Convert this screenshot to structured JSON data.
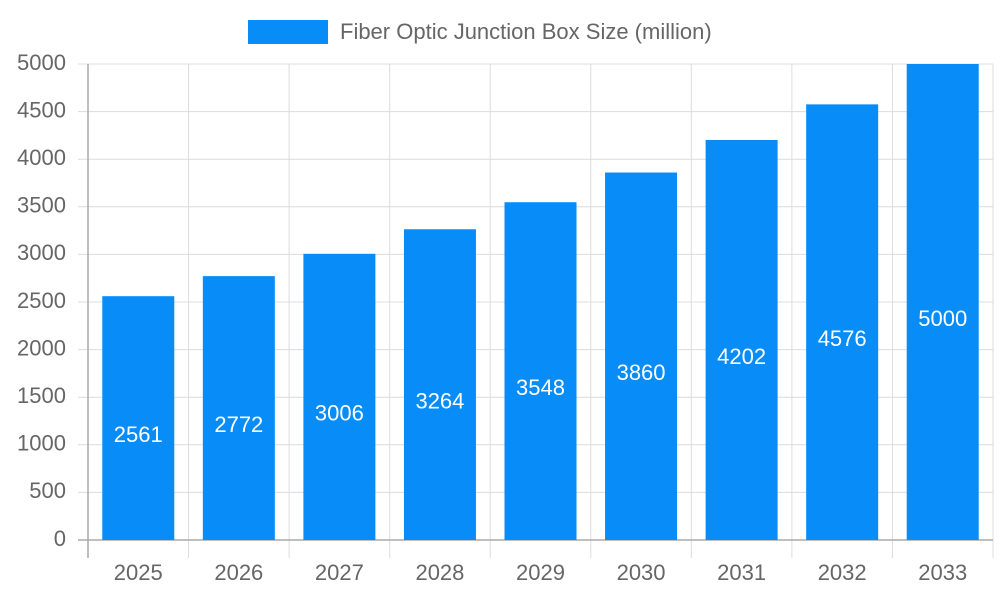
{
  "chart_data": {
    "type": "bar",
    "categories": [
      "2025",
      "2026",
      "2027",
      "2028",
      "2029",
      "2030",
      "2031",
      "2032",
      "2033"
    ],
    "series": [
      {
        "name": "Fiber Optic Junction Box Size (million)",
        "color": "#088cf8",
        "values": [
          2561,
          2772,
          3006,
          3264,
          3548,
          3860,
          4202,
          4576,
          5000
        ]
      }
    ],
    "ylim": [
      0,
      5000
    ],
    "yticks": [
      0,
      500,
      1000,
      1500,
      2000,
      2500,
      3000,
      3500,
      4000,
      4500,
      5000
    ],
    "grid": true,
    "legend": "top",
    "value_labels_inside": true
  }
}
